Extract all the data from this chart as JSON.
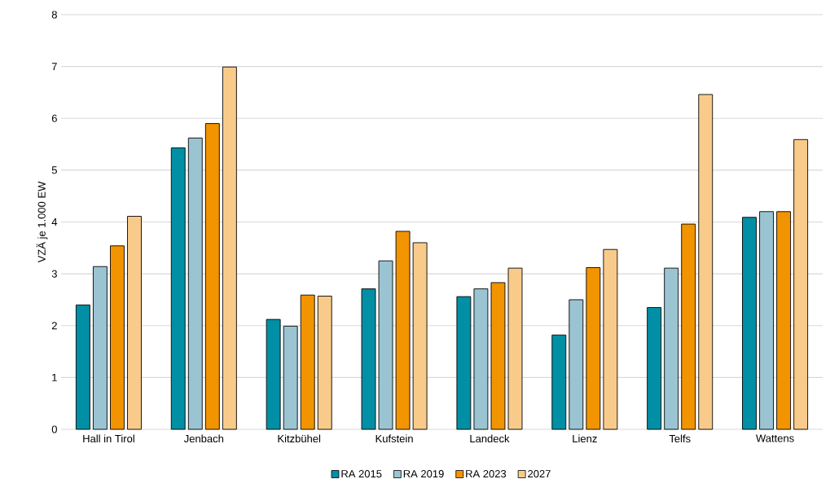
{
  "chart_data": {
    "type": "bar",
    "ylabel": "VZÄ je 1.000 EW",
    "categories": [
      "Hall in Tirol",
      "Jenbach",
      "Kitzbühel",
      "Kufstein",
      "Landeck",
      "Lienz",
      "Telfs",
      "Wattens"
    ],
    "series": [
      {
        "name": "RA 2015",
        "color": "#008fa5",
        "values": [
          2.4,
          5.43,
          2.12,
          2.71,
          2.56,
          1.82,
          2.35,
          4.09
        ]
      },
      {
        "name": "RA 2019",
        "color": "#9bc4d2",
        "values": [
          3.14,
          5.62,
          1.99,
          3.25,
          2.71,
          2.5,
          3.11,
          4.2
        ]
      },
      {
        "name": "RA 2023",
        "color": "#f29400",
        "values": [
          3.54,
          5.9,
          2.59,
          3.82,
          2.83,
          3.12,
          3.96,
          4.2
        ]
      },
      {
        "name": "2027",
        "color": "#f9cb8b",
        "values": [
          4.11,
          6.99,
          2.57,
          3.6,
          3.11,
          3.47,
          6.46,
          5.59
        ]
      }
    ],
    "ylim": [
      0,
      8
    ],
    "yticks": [
      0,
      1,
      2,
      3,
      4,
      5,
      6,
      7,
      8
    ],
    "grid": "y",
    "legend": "bottom"
  }
}
